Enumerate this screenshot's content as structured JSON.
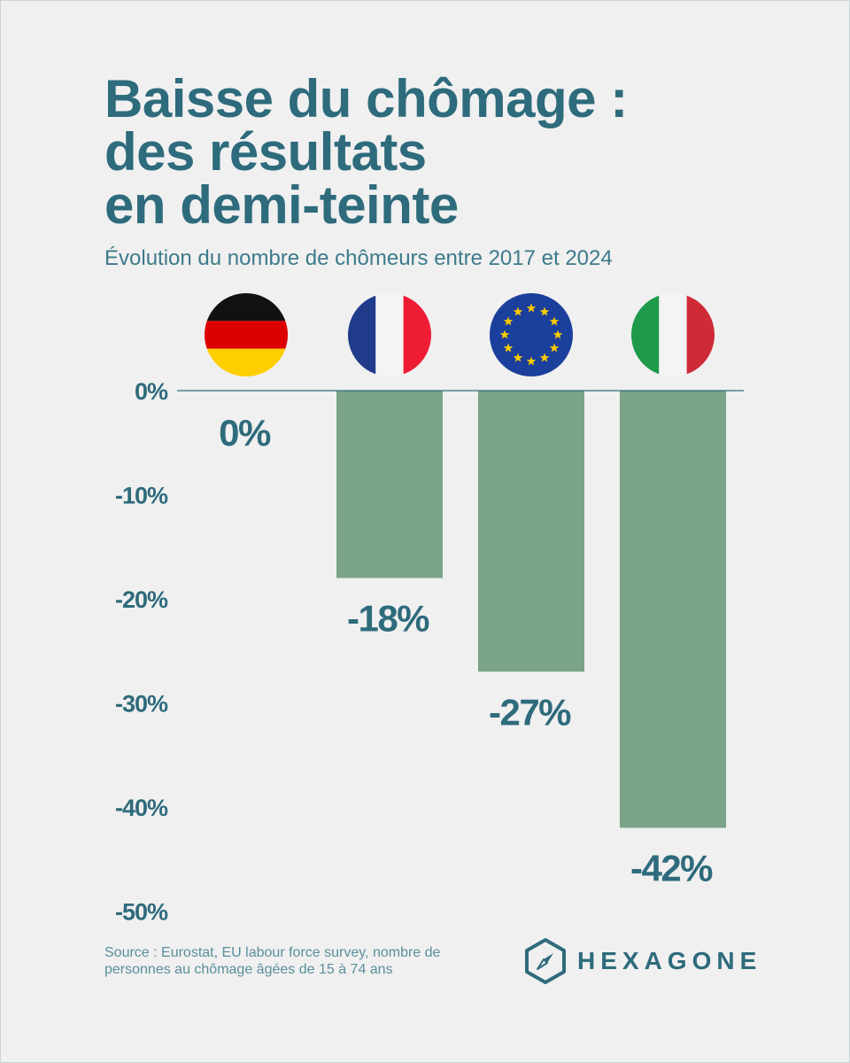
{
  "title_lines": [
    "Baisse du chômage :",
    "des résultats",
    "en demi-teinte"
  ],
  "subtitle": "Évolution du nombre de chômeurs entre 2017 et 2024",
  "source": "Source : Eurostat, EU labour force survey, nombre de personnes au chômage âgées de 15 à 74 ans",
  "brand": "HEXAGONE",
  "colors": {
    "bar": "#7aa387",
    "text": "#2e6b7c",
    "background": "#f0f0f0",
    "axis": "#2e6b7c"
  },
  "chart_data": {
    "type": "bar",
    "title": "Baisse du chômage : des résultats en demi-teinte",
    "subtitle": "Évolution du nombre de chômeurs entre 2017 et 2024",
    "categories": [
      "Allemagne",
      "France",
      "Union européenne",
      "Italie"
    ],
    "category_icons": [
      "flag-germany-icon",
      "flag-france-icon",
      "flag-eu-icon",
      "flag-italy-icon"
    ],
    "values": [
      0,
      -18,
      -27,
      -42
    ],
    "data_labels": [
      "0%",
      "-18%",
      "-27%",
      "-42%"
    ],
    "y_ticks": [
      0,
      -10,
      -20,
      -30,
      -40,
      -50
    ],
    "y_tick_labels": [
      "0%",
      "-10%",
      "-20%",
      "-30%",
      "-40%",
      "-50%"
    ],
    "ylim": [
      -50,
      0
    ],
    "xlabel": "",
    "ylabel": "",
    "grid": false,
    "legend": "none"
  }
}
